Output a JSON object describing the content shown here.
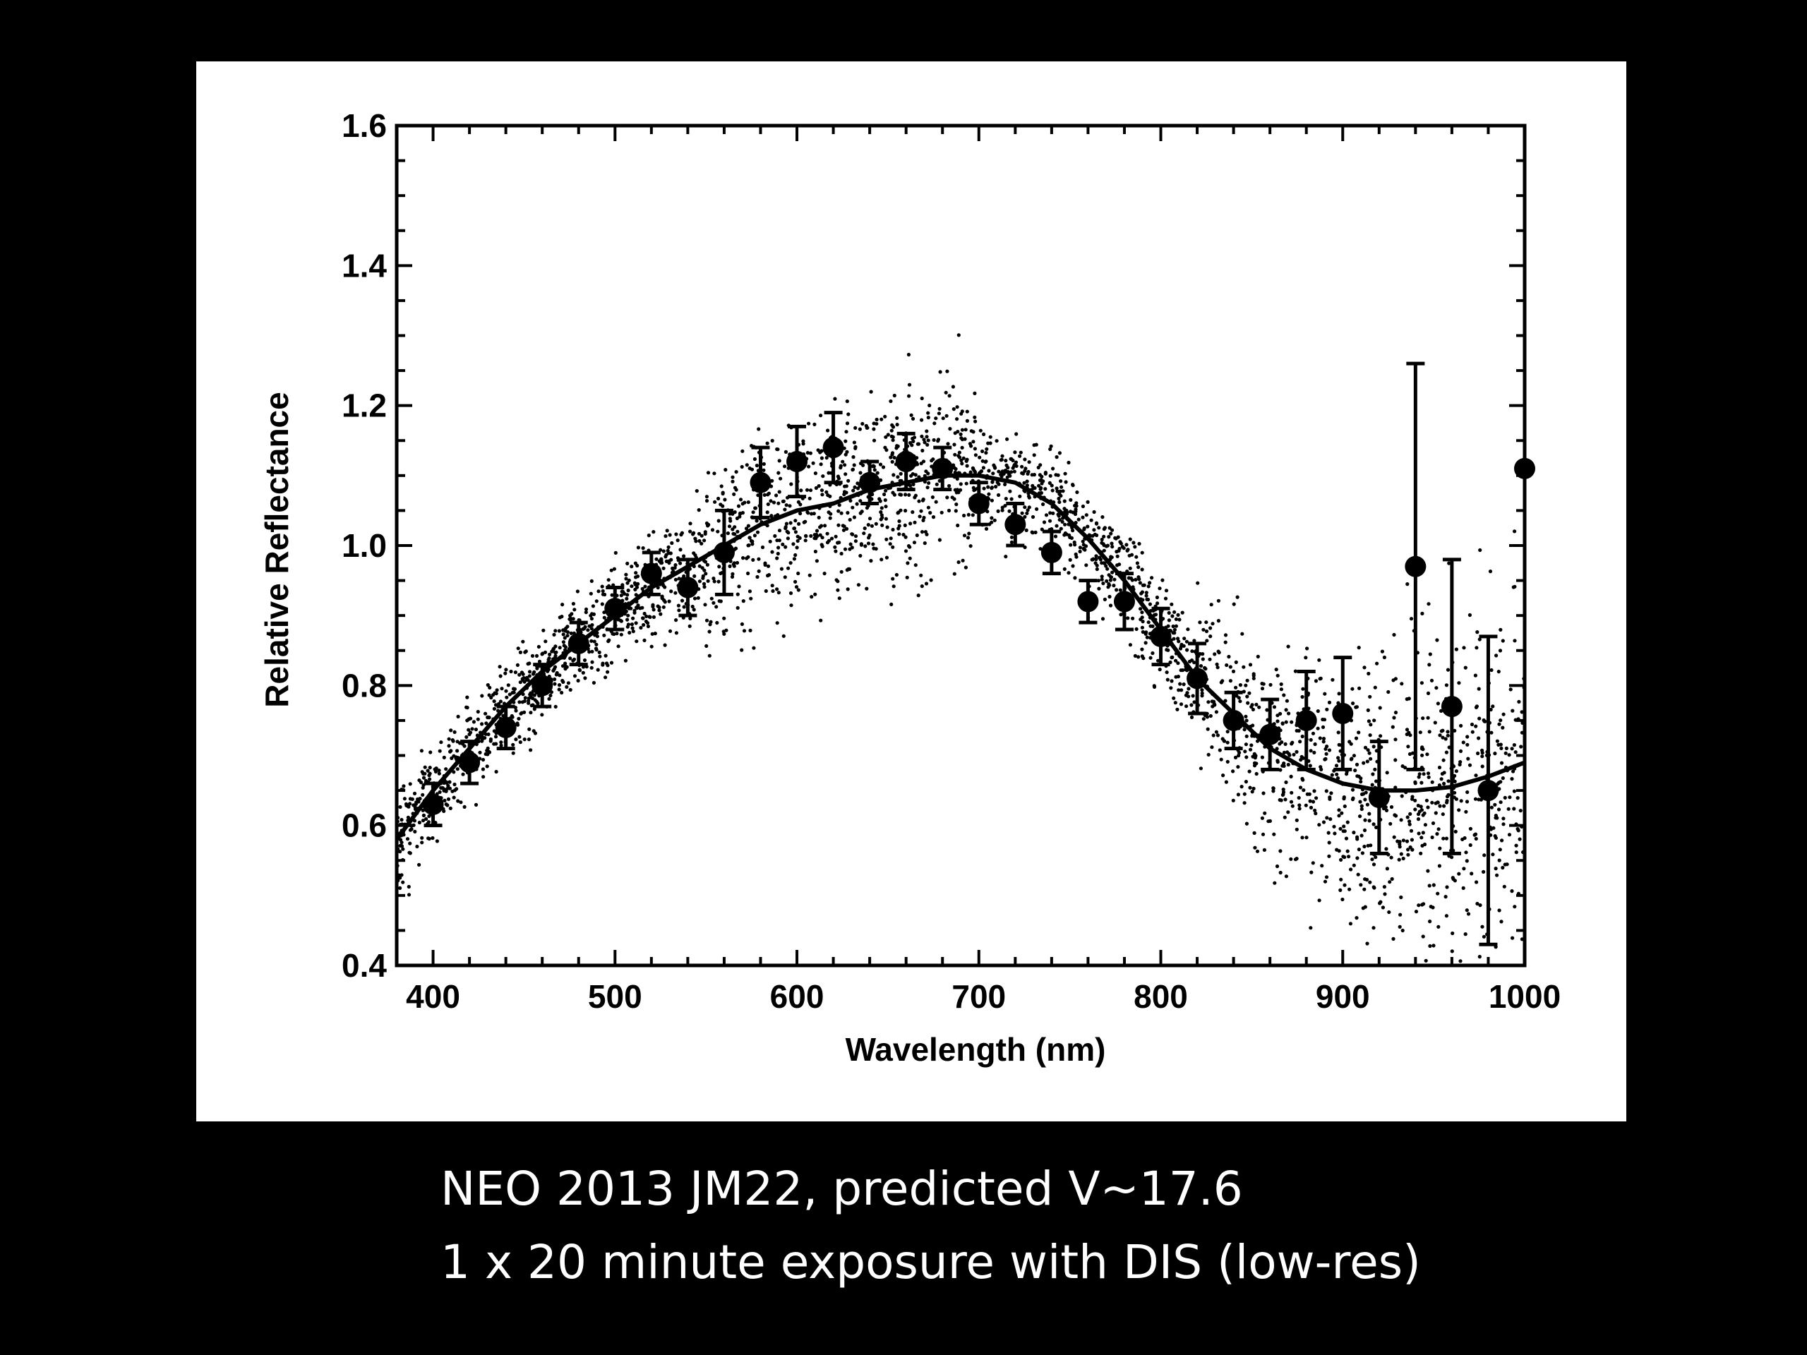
{
  "caption": {
    "line1": "NEO 2013 JM22, predicted V~17.6",
    "line2": "1 x 20 minute exposure with DIS (low-res)"
  },
  "chart_data": {
    "type": "scatter",
    "title": "",
    "xlabel": "Wavelength (nm)",
    "ylabel": "Relative Reflectance",
    "xlim": [
      380,
      1000
    ],
    "ylim": [
      0.4,
      1.6
    ],
    "xticks": [
      400,
      500,
      600,
      700,
      800,
      900,
      1000
    ],
    "yticks": [
      0.4,
      0.6,
      0.8,
      1.0,
      1.2,
      1.4,
      1.6
    ],
    "xtick_labels": [
      "400",
      "500",
      "600",
      "700",
      "800",
      "900",
      "1000"
    ],
    "ytick_labels": [
      "0.4",
      "0.6",
      "0.8",
      "1.0",
      "1.2",
      "1.4",
      "1.6"
    ],
    "grid": false,
    "binned_points": [
      {
        "x": 400,
        "y": 0.63,
        "err": 0.03
      },
      {
        "x": 420,
        "y": 0.69,
        "err": 0.03
      },
      {
        "x": 440,
        "y": 0.74,
        "err": 0.03
      },
      {
        "x": 460,
        "y": 0.8,
        "err": 0.03
      },
      {
        "x": 480,
        "y": 0.86,
        "err": 0.03
      },
      {
        "x": 500,
        "y": 0.91,
        "err": 0.03
      },
      {
        "x": 520,
        "y": 0.96,
        "err": 0.03
      },
      {
        "x": 540,
        "y": 0.94,
        "err": 0.04
      },
      {
        "x": 560,
        "y": 0.99,
        "err": 0.06
      },
      {
        "x": 580,
        "y": 1.09,
        "err": 0.05
      },
      {
        "x": 600,
        "y": 1.12,
        "err": 0.05
      },
      {
        "x": 620,
        "y": 1.14,
        "err": 0.05
      },
      {
        "x": 640,
        "y": 1.09,
        "err": 0.03
      },
      {
        "x": 660,
        "y": 1.12,
        "err": 0.04
      },
      {
        "x": 680,
        "y": 1.11,
        "err": 0.03
      },
      {
        "x": 700,
        "y": 1.06,
        "err": 0.03
      },
      {
        "x": 720,
        "y": 1.03,
        "err": 0.03
      },
      {
        "x": 740,
        "y": 0.99,
        "err": 0.03
      },
      {
        "x": 760,
        "y": 0.92,
        "err": 0.03
      },
      {
        "x": 780,
        "y": 0.92,
        "err": 0.04
      },
      {
        "x": 800,
        "y": 0.87,
        "err": 0.04
      },
      {
        "x": 820,
        "y": 0.81,
        "err": 0.05
      },
      {
        "x": 840,
        "y": 0.75,
        "err": 0.04
      },
      {
        "x": 860,
        "y": 0.73,
        "err": 0.05
      },
      {
        "x": 880,
        "y": 0.75,
        "err": 0.07
      },
      {
        "x": 900,
        "y": 0.76,
        "err": 0.08
      },
      {
        "x": 920,
        "y": 0.64,
        "err": 0.08
      },
      {
        "x": 940,
        "y": 0.97,
        "err": 0.29
      },
      {
        "x": 960,
        "y": 0.77,
        "err": 0.21
      },
      {
        "x": 980,
        "y": 0.65,
        "err": 0.22
      },
      {
        "x": 1000,
        "y": 1.11,
        "err": 0.0
      }
    ],
    "fit_curve": {
      "x": [
        380,
        400,
        420,
        440,
        460,
        480,
        500,
        520,
        540,
        560,
        580,
        600,
        620,
        640,
        660,
        680,
        700,
        720,
        740,
        760,
        780,
        800,
        820,
        840,
        860,
        880,
        900,
        920,
        940,
        960,
        980,
        1000
      ],
      "y": [
        0.58,
        0.65,
        0.71,
        0.77,
        0.82,
        0.86,
        0.9,
        0.94,
        0.97,
        1.0,
        1.03,
        1.05,
        1.06,
        1.08,
        1.09,
        1.1,
        1.1,
        1.09,
        1.06,
        1.01,
        0.95,
        0.88,
        0.81,
        0.76,
        0.71,
        0.68,
        0.66,
        0.65,
        0.65,
        0.655,
        0.67,
        0.69
      ]
    },
    "raw_scatter": "dense cloud of individual spectral pixel measurements surrounding the binned points, widening beyond 850 nm"
  }
}
